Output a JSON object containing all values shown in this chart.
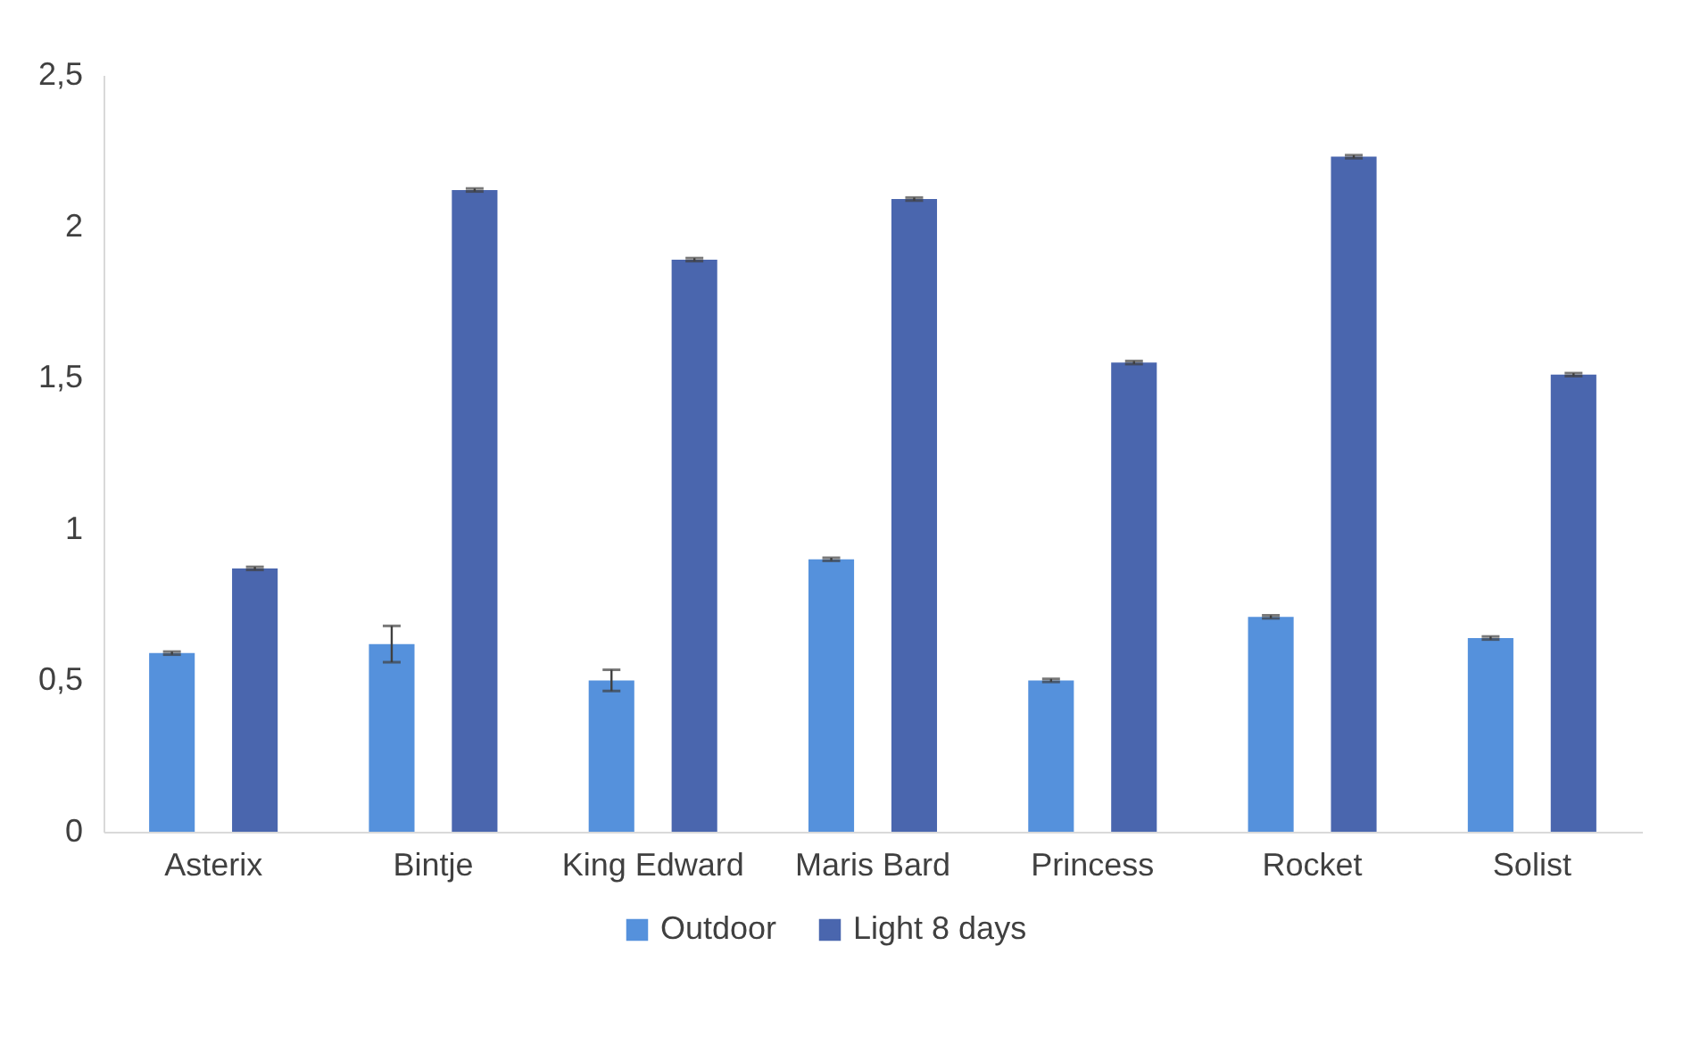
{
  "chart_data": {
    "type": "bar",
    "categories": [
      "Asterix",
      "Bintje",
      "King Edward",
      "Maris Bard",
      "Princess",
      "Rocket",
      "Solist"
    ],
    "series": [
      {
        "name": "Outdoor",
        "color": "#5591dc",
        "values": [
          0.59,
          0.62,
          0.5,
          0.9,
          0.5,
          0.71,
          0.64
        ],
        "errors": [
          0.005,
          0.06,
          0.035,
          0.005,
          0.005,
          0.005,
          0.005
        ]
      },
      {
        "name": "Light 8 days",
        "color": "#4a66ae",
        "values": [
          0.87,
          2.12,
          1.89,
          2.09,
          1.55,
          2.23,
          1.51
        ],
        "errors": [
          0.005,
          0.005,
          0.005,
          0.005,
          0.005,
          0.005,
          0.005
        ]
      }
    ],
    "ylim": [
      0,
      2.5
    ],
    "yticks": [
      0,
      {
        "value": 0.5,
        "label": "0,5"
      },
      1,
      {
        "value": 1.5,
        "label": "1,5"
      },
      2,
      {
        "value": 2.5,
        "label": "2,5"
      }
    ],
    "grid": false,
    "legend": "bottom"
  }
}
